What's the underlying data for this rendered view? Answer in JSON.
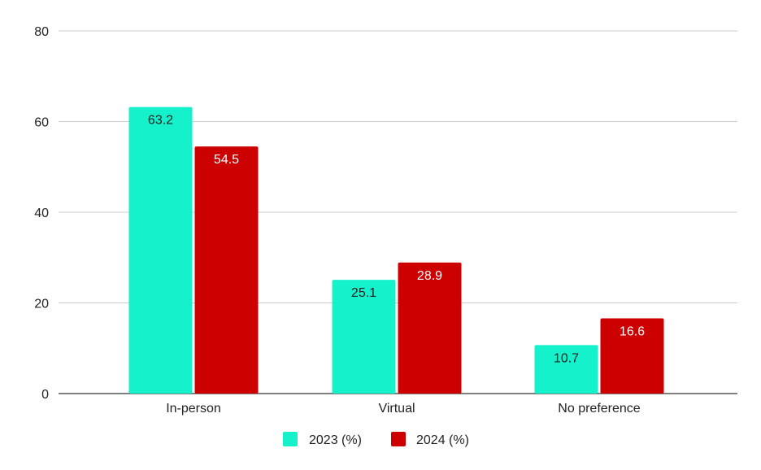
{
  "chart_data": {
    "type": "bar",
    "categories": [
      "In-person",
      "Virtual",
      "No preference"
    ],
    "series": [
      {
        "name": "2023 (%)",
        "values": [
          63.2,
          25.1,
          10.7
        ],
        "color": "#14f1cb",
        "label_color": "#222222"
      },
      {
        "name": "2024 (%)",
        "values": [
          54.5,
          28.9,
          16.6
        ],
        "color": "#cc0000",
        "label_color": "#ffffff"
      }
    ],
    "ylim": [
      0,
      80
    ],
    "yticks": [
      0,
      20,
      40,
      60,
      80
    ],
    "grid": true,
    "legend": "bottom",
    "title": "",
    "xlabel": "",
    "ylabel": ""
  }
}
